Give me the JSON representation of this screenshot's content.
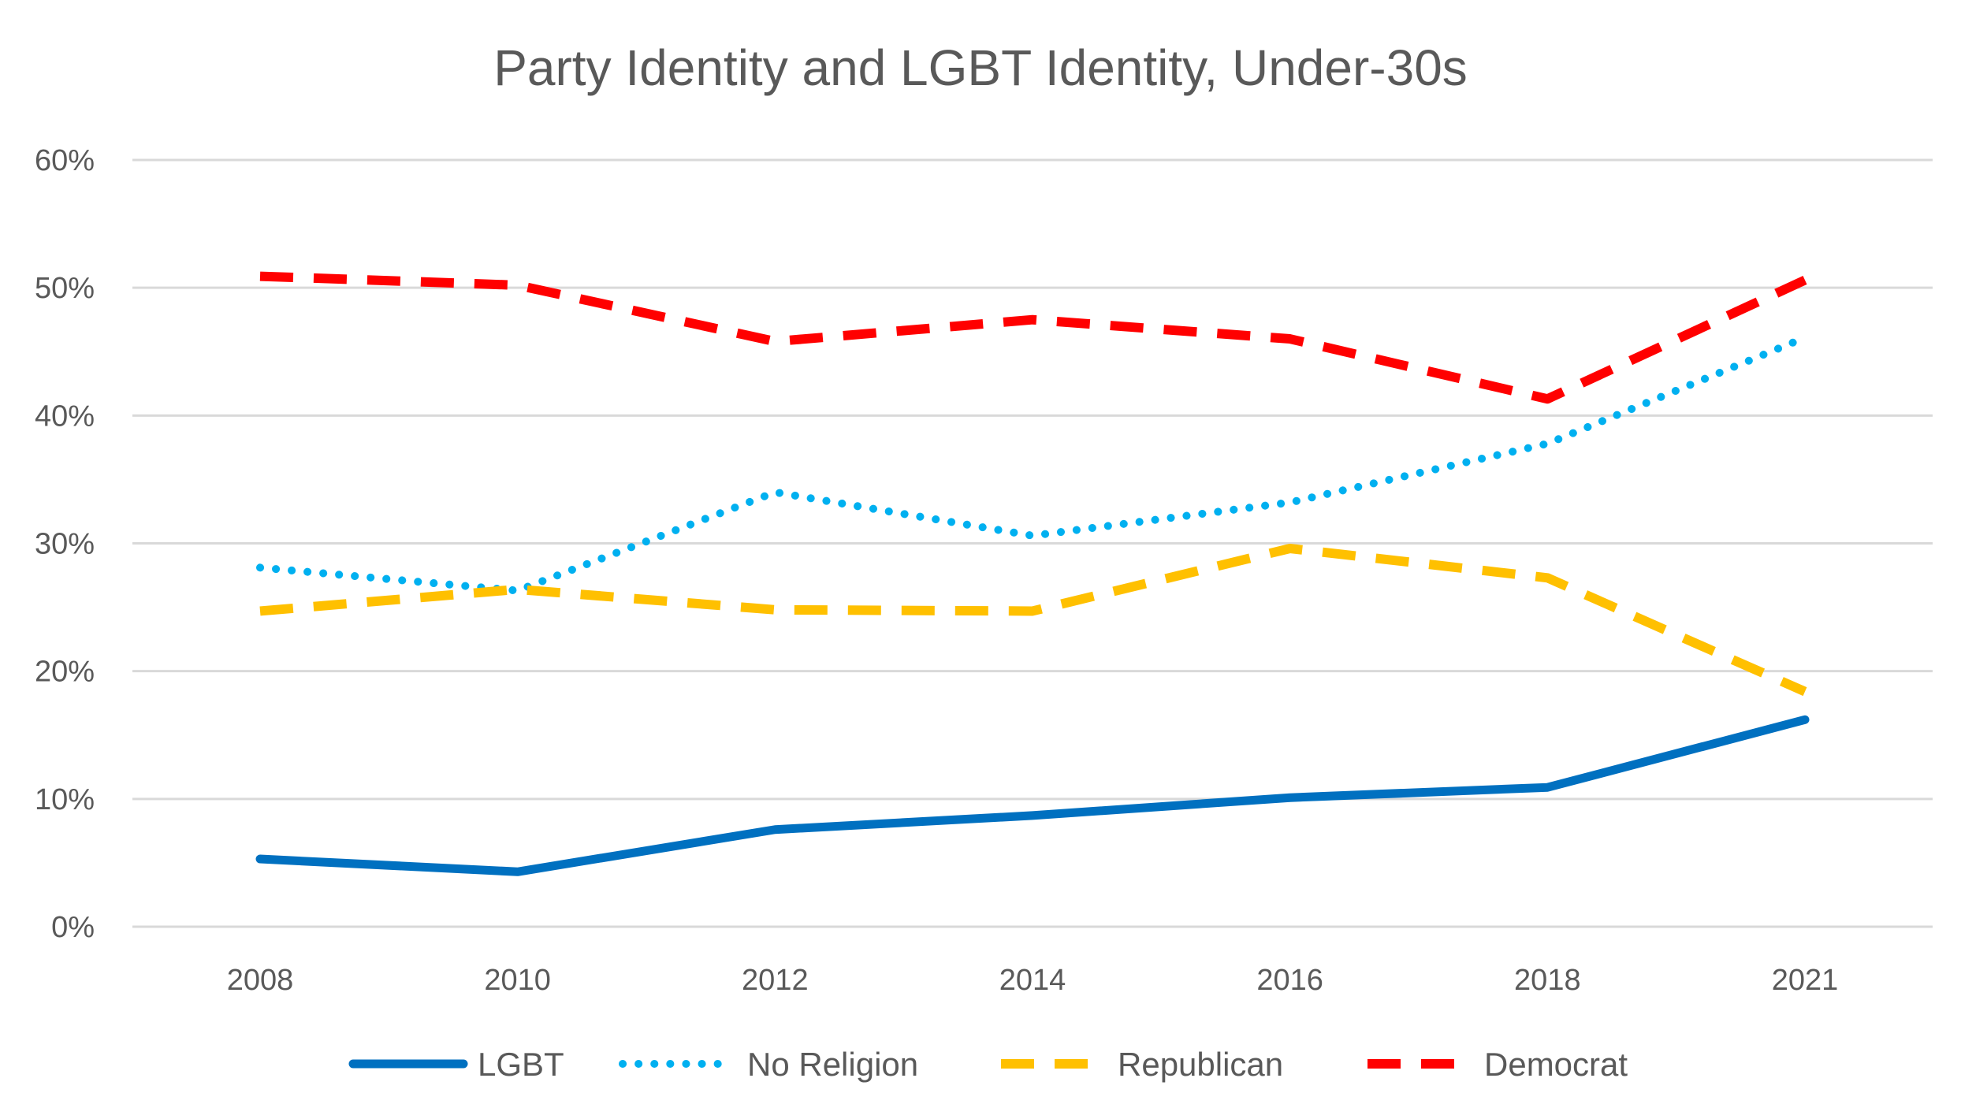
{
  "chart_data": {
    "type": "line",
    "title": "Party Identity and LGBT Identity, Under-30s",
    "xlabel": "",
    "ylabel": "",
    "categories": [
      "2008",
      "2010",
      "2012",
      "2014",
      "2016",
      "2018",
      "2021"
    ],
    "ylim": [
      0,
      60
    ],
    "yticks": [
      "0%",
      "10%",
      "20%",
      "30%",
      "40%",
      "50%",
      "60%"
    ],
    "grid": true,
    "legend_position": "bottom",
    "series": [
      {
        "name": "LGBT",
        "values": [
          5.3,
          4.3,
          7.6,
          8.7,
          10.1,
          10.9,
          16.2
        ],
        "color": "#0070C0",
        "style": "solid"
      },
      {
        "name": "No Religion",
        "values": [
          28.1,
          26.3,
          34.0,
          30.6,
          33.2,
          37.8,
          46.1
        ],
        "color": "#00B0F0",
        "style": "dotted"
      },
      {
        "name": "Republican",
        "values": [
          24.7,
          26.4,
          24.8,
          24.7,
          29.6,
          27.3,
          18.4
        ],
        "color": "#FFC000",
        "style": "dashed"
      },
      {
        "name": "Democrat",
        "values": [
          50.9,
          50.2,
          45.8,
          47.5,
          46.0,
          41.3,
          50.6
        ],
        "color": "#FF0000",
        "style": "dashed"
      }
    ]
  }
}
